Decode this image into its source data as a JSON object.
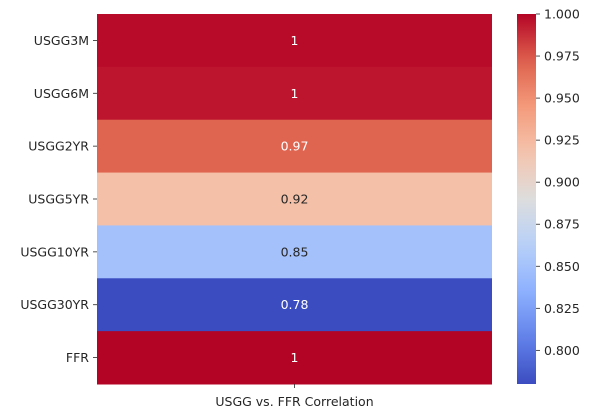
{
  "chart_data": {
    "type": "heatmap",
    "title": "",
    "xlabel": "",
    "ylabel": "",
    "columns": [
      "USGG vs. FFR Correlation"
    ],
    "rows": [
      "USGG3M",
      "USGG6M",
      "USGG2YR",
      "USGG5YR",
      "USGG10YR",
      "USGG30YR",
      "FFR"
    ],
    "values": [
      0.998,
      0.995,
      0.97,
      0.92,
      0.85,
      0.78,
      1.0
    ],
    "annotations": [
      "1",
      "1",
      "0.97",
      "0.92",
      "0.85",
      "0.78",
      "1"
    ],
    "colormap": "coolwarm",
    "colorbar": {
      "range": [
        0.78,
        1.0
      ],
      "ticks": [
        0.8,
        0.825,
        0.85,
        0.875,
        0.9,
        0.925,
        0.95,
        0.975,
        1.0
      ],
      "tick_labels": [
        "0.800",
        "0.825",
        "0.850",
        "0.875",
        "0.900",
        "0.925",
        "0.950",
        "0.975",
        "1.000"
      ]
    },
    "grid": false,
    "legend": "colorbar-right"
  },
  "colors": {
    "background": "#ffffff",
    "tick_text": "#262626",
    "annotation_dark": "#262626",
    "annotation_light": "#ffffff"
  }
}
